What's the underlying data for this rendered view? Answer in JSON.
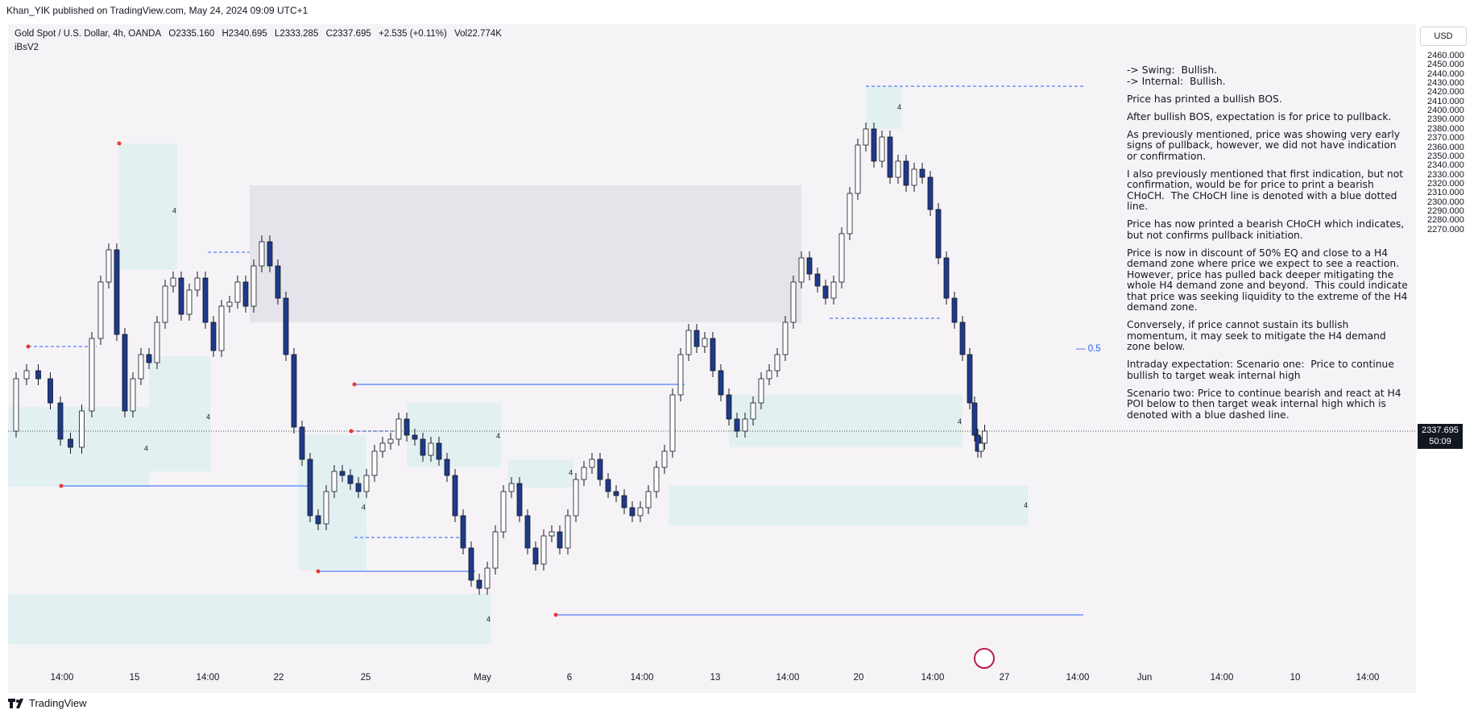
{
  "header": {
    "published_by": "Khan_YIK published on TradingView.com, May 24, 2024 09:09 UTC+1"
  },
  "symbol": {
    "name": "Gold Spot / U.S. Dollar, 4h, OANDA",
    "open": "O2335.160",
    "high": "H2340.695",
    "low": "L2333.285",
    "close": "C2337.695",
    "change": "+2.535 (+0.11%)",
    "volume": "Vol22.774K",
    "indicator": "iBsV2"
  },
  "currency_button": "USD",
  "price_axis": [
    "2460.000",
    "2450.000",
    "2440.000",
    "2430.000",
    "2420.000",
    "2410.000",
    "2400.000",
    "2390.000",
    "2380.000",
    "2370.000",
    "2360.000",
    "2350.000",
    "2340.000",
    "2330.000",
    "2320.000",
    "2310.000",
    "2300.000",
    "2290.000",
    "2280.000",
    "2270.000"
  ],
  "time_axis": [
    {
      "label": "14:00",
      "x": 77
    },
    {
      "label": "15",
      "x": 167
    },
    {
      "label": "14:00",
      "x": 258
    },
    {
      "label": "22",
      "x": 346
    },
    {
      "label": "25",
      "x": 454
    },
    {
      "label": "May",
      "x": 599
    },
    {
      "label": "6",
      "x": 707
    },
    {
      "label": "14:00",
      "x": 797
    },
    {
      "label": "13",
      "x": 888
    },
    {
      "label": "14:00",
      "x": 978
    },
    {
      "label": "20",
      "x": 1066
    },
    {
      "label": "14:00",
      "x": 1158
    },
    {
      "label": "27",
      "x": 1247
    },
    {
      "label": "14:00",
      "x": 1338
    },
    {
      "label": "Jun",
      "x": 1421
    },
    {
      "label": "14:00",
      "x": 1517
    },
    {
      "label": "10",
      "x": 1608
    },
    {
      "label": "14:00",
      "x": 1698
    }
  ],
  "last_price": {
    "value": "2337.695",
    "countdown": "50:09"
  },
  "eq_label": "0.5",
  "analysis": [
    "-> Swing:  Bullish.\n-> Internal:  Bullish.",
    "Price has printed a bullish BOS.",
    "After bullish BOS, expectation is for price to pullback.",
    "As previously mentioned, price was showing very early signs of pullback, however, we did not have indication or confirmation.",
    "I also previously mentioned that first indication, but not confirmation, would be for price to print a bearish CHoCH.  The CHoCH line is denoted with a blue dotted line.",
    "Price has now printed a bearish CHoCH which indicates, but not confirms pullback initiation.",
    "Price is now in discount of 50% EQ and close to a H4 demand zone where price we expect to see a reaction.  However, price has pulled back deeper mitigating the whole H4 demand zone and beyond.  This could indicate that price was seeking liquidity to the extreme of the H4 demand zone.",
    "Conversely, if price cannot sustain its bullish momentum, it may seek to mitigate the H4 demand zone below.",
    "Intraday expectation: Scenario one:  Price to continue bullish to target weak internal high",
    "Scenario two: Price to continue bearish and react at H4 POI below to then target weak internal high which is denoted with a blue dashed line."
  ],
  "zone_label": "4",
  "footer": {
    "brand": "TradingView"
  },
  "colors": {
    "bull": "#ffffff",
    "bear": "#1e3a8a",
    "zone": "#e3f0f2",
    "supply": "#e4e4ea",
    "line": "#2962ff",
    "pivot": "#e53935"
  },
  "chart_data": {
    "type": "candlestick",
    "title": "Gold Spot / U.S. Dollar, 4h, OANDA",
    "ylim": [
      2265,
      2465
    ],
    "pivots": [
      2430,
      2418,
      2365,
      2352,
      2339,
      2320,
      2292,
      2277,
      2450
    ],
    "last": 2337.695
  }
}
